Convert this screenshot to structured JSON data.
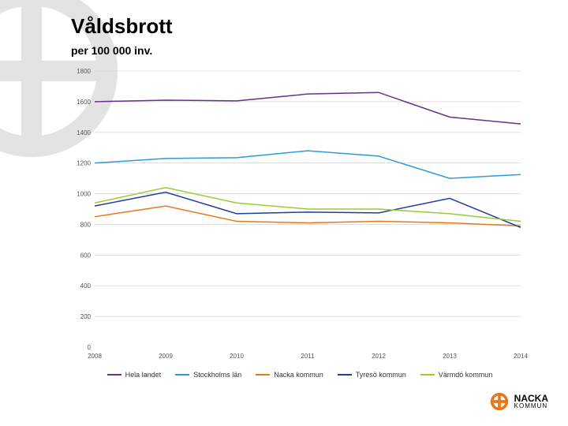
{
  "title": "Våldsbrott",
  "subtitle": "per 100 000 inv.",
  "footer_brand": "NACKA",
  "footer_brand_sub": "KOMMUN",
  "chart": {
    "type": "line",
    "background_color": "#ffffff",
    "grid_color": "#cccccc",
    "title_fontsize": 26,
    "subtitle_fontsize": 14,
    "axis_fontsize": 8,
    "legend_fontsize": 9,
    "line_width": 1.5,
    "xlim": [
      2008,
      2014
    ],
    "ylim": [
      0,
      1800
    ],
    "ytick_step": 200,
    "x_labels": [
      "2008",
      "2009",
      "2010",
      "2011",
      "2012",
      "2013",
      "2014"
    ],
    "y_labels": [
      "0",
      "200",
      "400",
      "600",
      "800",
      "1000",
      "1200",
      "1400",
      "1600",
      "1800"
    ],
    "series": [
      {
        "name": "Hela landet",
        "color": "#6a2e8f",
        "values": [
          1600,
          1610,
          1605,
          1650,
          1660,
          1500,
          1455
        ]
      },
      {
        "name": "Stockholms län",
        "color": "#2e9bd6",
        "values": [
          1200,
          1230,
          1235,
          1280,
          1245,
          1100,
          1125
        ]
      },
      {
        "name": "Nacka kommun",
        "color": "#e67817",
        "values": [
          850,
          920,
          820,
          810,
          820,
          810,
          790
        ]
      },
      {
        "name": "Tyresö kommun",
        "color": "#1f3f9c",
        "values": [
          920,
          1010,
          870,
          880,
          875,
          970,
          780
        ]
      },
      {
        "name": "Värmdö kommun",
        "color": "#99cc33",
        "values": [
          940,
          1040,
          940,
          900,
          900,
          870,
          820
        ]
      }
    ]
  },
  "ornament_color": "#4a4a4a",
  "logo_accent": "#e67817"
}
